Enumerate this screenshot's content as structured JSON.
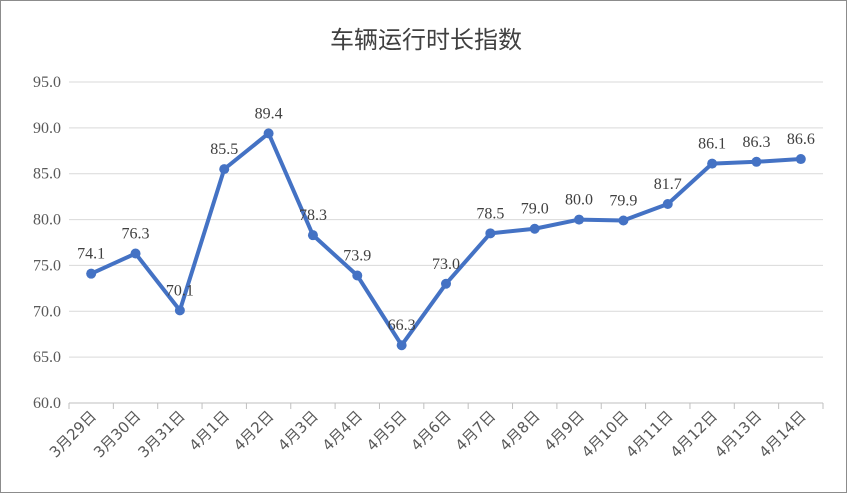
{
  "chart_data": {
    "type": "line",
    "title": "车辆运行时长指数",
    "xlabel": "",
    "ylabel": "",
    "categories": [
      "3月29日",
      "3月30日",
      "3月31日",
      "4月1日",
      "4月2日",
      "4月3日",
      "4月4日",
      "4月5日",
      "4月6日",
      "4月7日",
      "4月8日",
      "4月9日",
      "4月10日",
      "4月11日",
      "4月12日",
      "4月13日",
      "4月14日"
    ],
    "series": [
      {
        "values": [
          74.1,
          76.3,
          70.1,
          85.5,
          89.4,
          78.3,
          73.9,
          66.3,
          73.0,
          78.5,
          79.0,
          80.0,
          79.9,
          81.7,
          86.1,
          86.3,
          86.6
        ],
        "labels": [
          "74.1",
          "76.3",
          "70.1",
          "85.5",
          "89.4",
          "78.3",
          "73.9",
          "66.3",
          "73.0",
          "78.5",
          "79.0",
          "80.0",
          "79.9",
          "81.7",
          "86.1",
          "86.3",
          "86.6"
        ],
        "color": "#4472c4"
      }
    ],
    "yticks": [
      "60.0",
      "65.0",
      "70.0",
      "75.0",
      "80.0",
      "85.0",
      "90.0",
      "95.0"
    ],
    "ylim": [
      60,
      95
    ],
    "grid": true,
    "legend": "none"
  }
}
